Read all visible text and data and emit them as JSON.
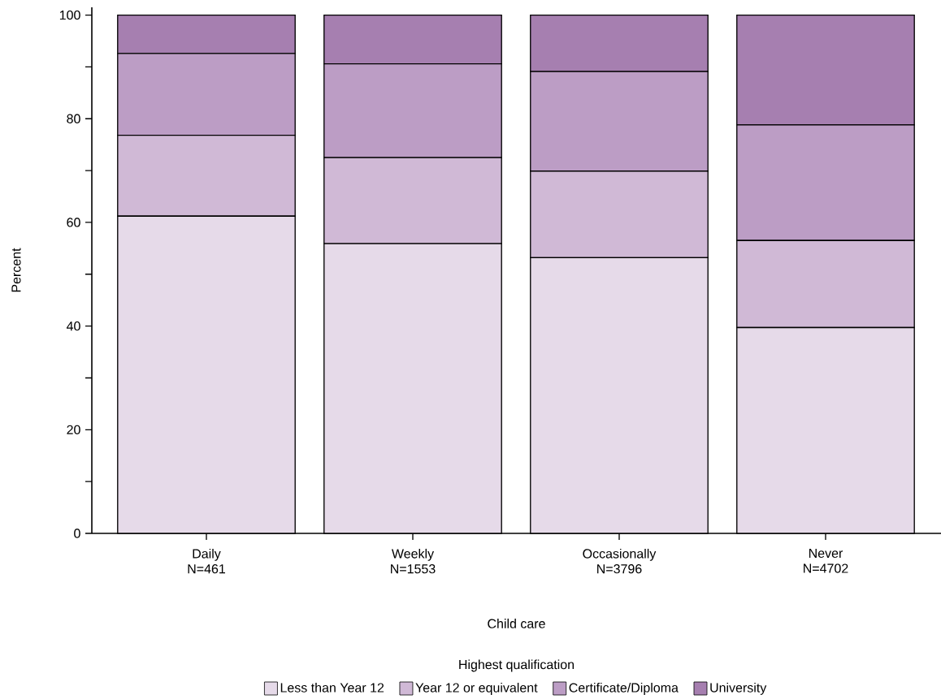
{
  "chart_data": {
    "type": "bar",
    "stacked": true,
    "categories": [
      "Daily N=461",
      "Weekly N=1553",
      "Occasionally N=3796",
      "Never N=4702"
    ],
    "xlabel": "Child care",
    "ylabel": "Percent",
    "legend_title": "Highest qualification",
    "series": [
      {
        "name": "Less than Year 12",
        "color": "#e6dae9",
        "values": [
          61.2,
          55.9,
          53.2,
          39.7
        ]
      },
      {
        "name": "Year 12 or equivalent",
        "color": "#d0b9d6",
        "values": [
          15.6,
          16.6,
          16.7,
          16.8
        ]
      },
      {
        "name": "Certificate/Diploma",
        "color": "#bc9dc5",
        "values": [
          15.8,
          18.1,
          19.2,
          22.3
        ]
      },
      {
        "name": "University",
        "color": "#a67fb0",
        "values": [
          7.4,
          9.4,
          10.9,
          21.2
        ]
      }
    ],
    "ylim": [
      0,
      101.5
    ],
    "yticks": [
      0,
      {
        "value": 10,
        "label": null
      },
      20,
      {
        "value": 30,
        "label": null
      },
      40,
      {
        "value": 50,
        "label": null
      },
      60,
      {
        "value": 70,
        "label": null
      },
      80,
      {
        "value": 90,
        "label": null
      },
      100
    ],
    "legend": "bottom",
    "grid": false
  }
}
